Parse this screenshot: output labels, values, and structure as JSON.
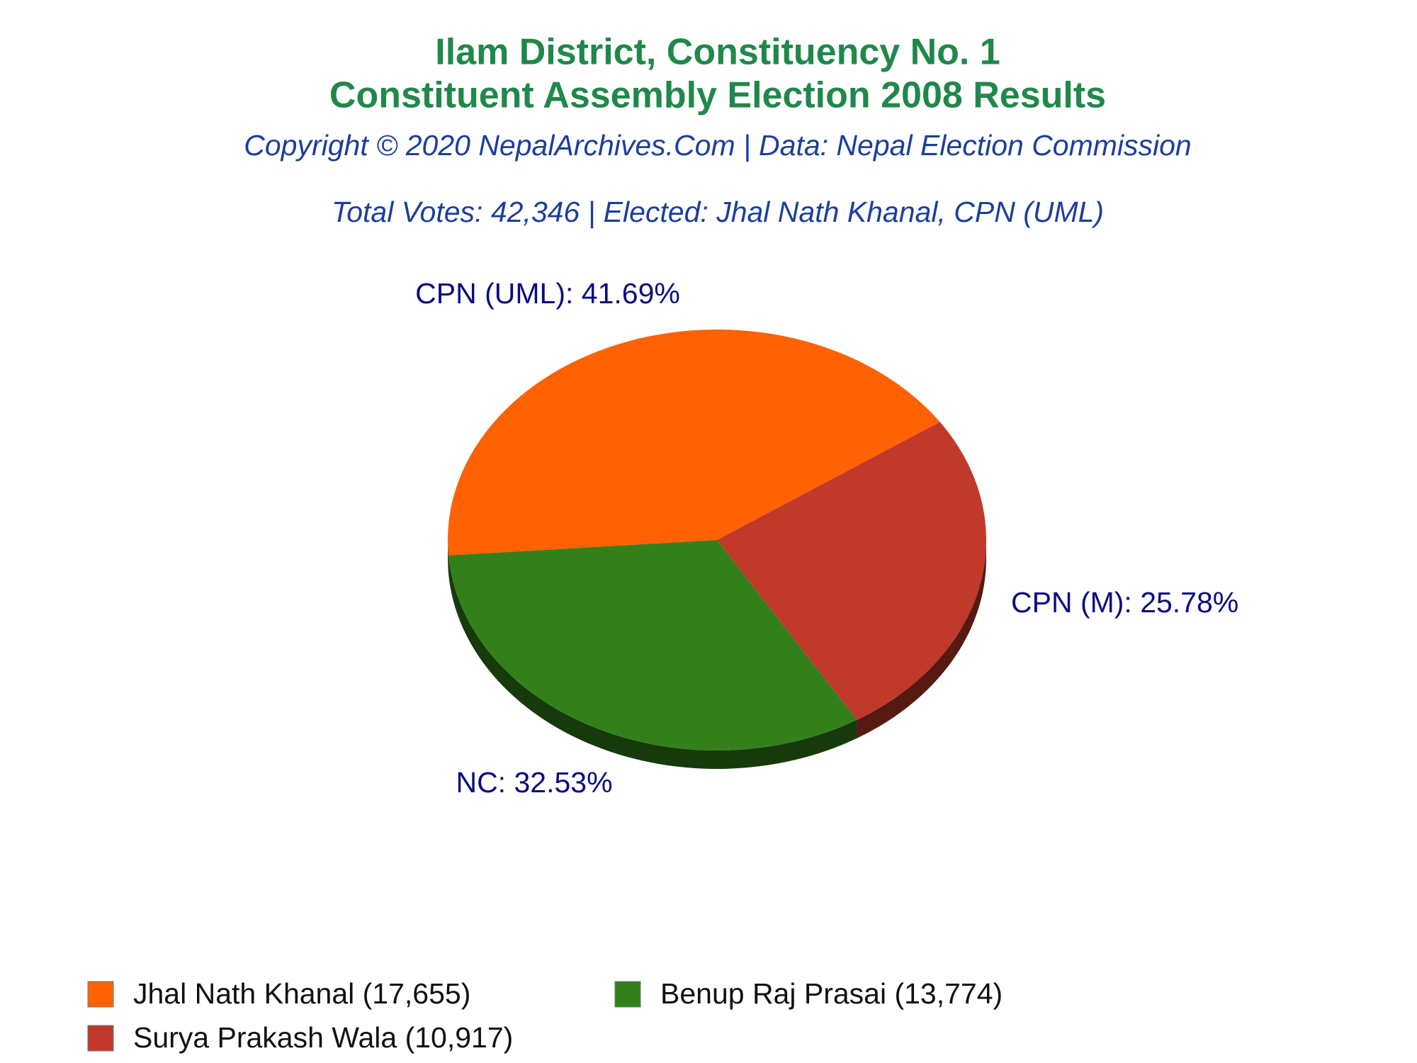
{
  "chart_data": {
    "type": "pie",
    "title": [
      "Ilam District, Constituency No. 1",
      "Constituent Assembly Election 2008 Results"
    ],
    "subtitle": "Copyright © 2020 NepalArchives.Com | Data: Nepal Election Commission",
    "summary": "Total Votes: 42,346 | Elected: Jhal Nath Khanal, CPN (UML)",
    "categories": [
      "Jhal Nath Khanal (17,655)",
      "Surya Prakash Wala (10,917)",
      "Benup Raj Prasai (13,774)"
    ],
    "values": [
      41.69,
      25.78,
      32.53
    ],
    "value_labels": [
      "CPN (UML): 41.69%",
      "CPN (M): 25.78%",
      "NC: 32.53%"
    ],
    "colors": [
      "#ff6103",
      "#c0392b",
      "#33801a"
    ]
  }
}
